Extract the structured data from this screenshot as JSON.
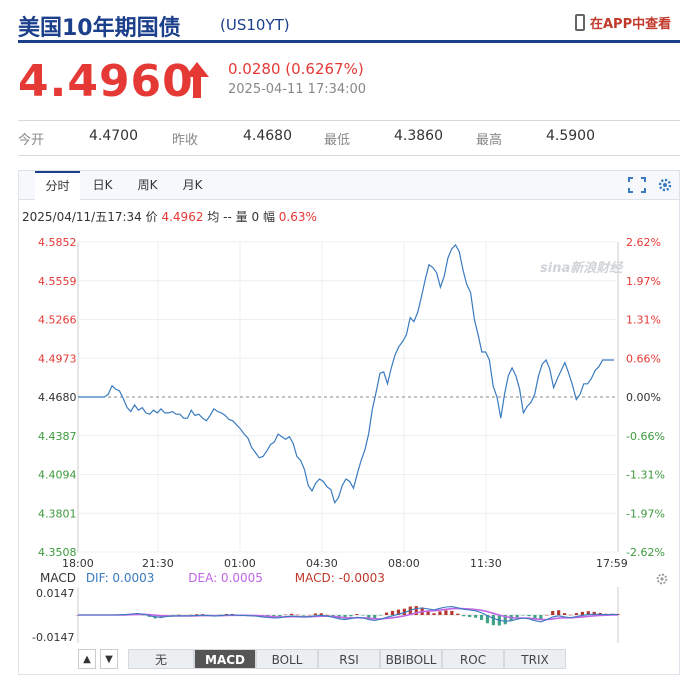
{
  "header": {
    "title": "美国10年期国债",
    "code": "(US10YT)",
    "app_link": "在APP中查看"
  },
  "quote": {
    "price": "4.4960",
    "change": "0.0280 (0.6267%)",
    "timestamp": "2025-04-11 17:34:00",
    "direction": "up",
    "color": "#e53935"
  },
  "stats": [
    {
      "label": "今开",
      "value": "4.4700"
    },
    {
      "label": "昨收",
      "value": "4.4680"
    },
    {
      "label": "最低",
      "value": "4.3860"
    },
    {
      "label": "最高",
      "value": "4.5900"
    }
  ],
  "tabs": [
    {
      "label": "分时",
      "active": true
    },
    {
      "label": "日K",
      "active": false
    },
    {
      "label": "周K",
      "active": false
    },
    {
      "label": "月K",
      "active": false
    }
  ],
  "toolbar": {
    "fullscreen_icon": "fullscreen-icon",
    "settings_icon": "gear-icon"
  },
  "info_line": {
    "datetime": "2025/04/11/五17:34",
    "price_label": "价",
    "price": "4.4962",
    "avg_label": "均",
    "avg": "--",
    "vol_label": "量",
    "vol": "0",
    "amp_label": "幅",
    "amp": "0.63%"
  },
  "watermark": "sina新浪财经",
  "chart_data": {
    "type": "line",
    "ylim": [
      4.3508,
      4.5852
    ],
    "baseline": 4.468,
    "y_ticks_left": [
      "4.5852",
      "4.5559",
      "4.5266",
      "4.4973",
      "4.4680",
      "4.4387",
      "4.4094",
      "4.3801",
      "4.3508"
    ],
    "y_ticks_right": [
      "2.62%",
      "1.97%",
      "1.31%",
      "0.66%",
      "0.00%",
      "-0.66%",
      "-1.31%",
      "-1.97%",
      "-2.62%"
    ],
    "x_ticks": [
      "18:00",
      "21:30",
      "01:00",
      "04:30",
      "08:00",
      "11:30",
      "17:59"
    ],
    "series": [
      {
        "values": [
          4.468,
          4.468,
          4.468,
          4.468,
          4.468,
          4.468,
          4.468,
          4.468,
          4.47,
          4.4765,
          4.474,
          4.4725,
          4.4668,
          4.46,
          4.457,
          4.462,
          4.458,
          4.46,
          4.456,
          4.455,
          4.458,
          4.456,
          4.459,
          4.456,
          4.456,
          4.457,
          4.455,
          4.455,
          4.452,
          4.452,
          4.458,
          4.454,
          4.455,
          4.452,
          4.45,
          4.454,
          4.459,
          4.457,
          4.456,
          4.454,
          4.451,
          4.45,
          4.447,
          4.444,
          4.44,
          4.437,
          4.43,
          4.426,
          4.422,
          4.423,
          4.427,
          4.432,
          4.434,
          4.44,
          4.438,
          4.436,
          4.438,
          4.433,
          4.423,
          4.42,
          4.413,
          4.401,
          4.397,
          4.403,
          4.406,
          4.404,
          4.4,
          4.398,
          4.388,
          4.392,
          4.401,
          4.406,
          4.404,
          4.399,
          4.41,
          4.42,
          4.428,
          4.44,
          4.459,
          4.472,
          4.486,
          4.487,
          4.478,
          4.49,
          4.5,
          4.506,
          4.51,
          4.515,
          4.528,
          4.525,
          4.532,
          4.544,
          4.557,
          4.568,
          4.566,
          4.562,
          4.551,
          4.559,
          4.573,
          4.58,
          4.583,
          4.578,
          4.564,
          4.553,
          4.547,
          4.527,
          4.515,
          4.502,
          4.502,
          4.496,
          4.476,
          4.468,
          4.452,
          4.47,
          4.484,
          4.49,
          4.484,
          4.474,
          4.456,
          4.461,
          4.464,
          4.47,
          4.484,
          4.493,
          4.496,
          4.489,
          4.475,
          4.482,
          4.488,
          4.494,
          4.486,
          4.477,
          4.466,
          4.47,
          4.478,
          4.478,
          4.482,
          4.488,
          4.491,
          4.496,
          4.496,
          4.496,
          4.496
        ]
      }
    ]
  },
  "macd": {
    "label": "MACD",
    "dif": "DIF: 0.0003",
    "dea": "DEA: 0.0005",
    "macd": "MACD: -0.0003",
    "y_top": "0.0147",
    "y_bottom": "-0.0147",
    "ylim": [
      -0.0147,
      0.0147
    ],
    "dif_values": [
      0.0,
      0.0,
      0.0,
      0.0,
      0.0,
      0.0,
      0.0,
      0.0001,
      0.0002,
      0.0005,
      0.0008,
      0.0004,
      -0.0003,
      -0.001,
      -0.0012,
      -0.0008,
      -0.0006,
      -0.0004,
      -0.0005,
      -0.0004,
      -0.0002,
      -0.0001,
      -0.0003,
      -0.0006,
      -0.0003,
      0.0,
      0.0001,
      -0.0001,
      -0.0002,
      -0.0004,
      -0.0006,
      -0.001,
      -0.0013,
      -0.0016,
      -0.0014,
      -0.0009,
      -0.0006,
      -0.0008,
      -0.0011,
      -0.0009,
      -0.0004,
      -0.0002,
      -0.0006,
      -0.0012,
      -0.002,
      -0.0024,
      -0.0019,
      -0.0012,
      -0.0015,
      -0.0024,
      -0.0029,
      -0.0022,
      -0.0012,
      -0.0004,
      0.0004,
      0.0012,
      0.0025,
      0.0034,
      0.0037,
      0.0032,
      0.0027,
      0.0035,
      0.0042,
      0.0044,
      0.0038,
      0.003,
      0.0026,
      0.0022,
      0.0012,
      -0.0004,
      -0.0018,
      -0.0028,
      -0.0033,
      -0.003,
      -0.0022,
      -0.0016,
      -0.002,
      -0.003,
      -0.0036,
      -0.0024,
      -0.001,
      -0.0004,
      -0.001,
      -0.0014,
      -0.0008,
      -0.0002,
      0.0003,
      0.0004,
      0.0003,
      0.0002,
      0.0003,
      0.0003
    ]
  },
  "indicators": [
    "无",
    "MACD",
    "BOLL",
    "RSI",
    "BBIBOLL",
    "ROC",
    "TRIX"
  ],
  "active_indicator": "MACD",
  "colors": {
    "up": "#e53935",
    "down": "#3d9a3d",
    "line": "#3a7bbf",
    "dea": "#c067e6",
    "brand": "#1b3f8b"
  }
}
